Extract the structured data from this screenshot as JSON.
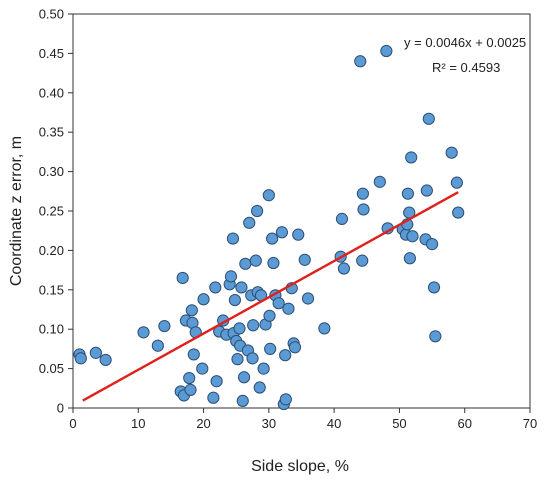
{
  "chart_data": {
    "type": "scatter",
    "xlabel": "Side slope, %",
    "ylabel": "Coordinate z error, m",
    "xlim": [
      0,
      70
    ],
    "ylim": [
      0,
      0.5
    ],
    "xticks": [
      "0",
      "10",
      "20",
      "30",
      "40",
      "50",
      "60",
      "70"
    ],
    "yticks": [
      "0",
      "0.05",
      "0.10",
      "0.15",
      "0.20",
      "0.25",
      "0.30",
      "0.35",
      "0.40",
      "0.45",
      "0.50"
    ],
    "grid": false,
    "legend": "none",
    "point_color": "#5B9BD5",
    "point_edge": "#2E4E73",
    "trend_color": "#E0201B",
    "annotations": [
      "y = 0.0046x + 0.0025",
      "R² = 0.4593"
    ],
    "trendline": {
      "slope": 0.0046,
      "intercept": 0.0025,
      "x": [
        1.5,
        59
      ]
    },
    "points": [
      [
        1,
        0.068
      ],
      [
        1.2,
        0.063
      ],
      [
        3.5,
        0.07
      ],
      [
        5,
        0.061
      ],
      [
        10.8,
        0.096
      ],
      [
        13,
        0.079
      ],
      [
        14,
        0.104
      ],
      [
        16.5,
        0.021
      ],
      [
        16.8,
        0.165
      ],
      [
        17,
        0.016
      ],
      [
        17.3,
        0.111
      ],
      [
        17.8,
        0.038
      ],
      [
        18,
        0.023
      ],
      [
        18.2,
        0.124
      ],
      [
        18.3,
        0.108
      ],
      [
        18.5,
        0.068
      ],
      [
        18.8,
        0.096
      ],
      [
        19.8,
        0.05
      ],
      [
        20,
        0.138
      ],
      [
        21.5,
        0.013
      ],
      [
        21.8,
        0.153
      ],
      [
        22,
        0.034
      ],
      [
        22.4,
        0.097
      ],
      [
        23,
        0.111
      ],
      [
        23.5,
        0.093
      ],
      [
        24,
        0.157
      ],
      [
        24.2,
        0.167
      ],
      [
        24.5,
        0.215
      ],
      [
        24.6,
        0.095
      ],
      [
        24.8,
        0.137
      ],
      [
        25,
        0.085
      ],
      [
        25.2,
        0.062
      ],
      [
        25.5,
        0.101
      ],
      [
        25.6,
        0.079
      ],
      [
        25.8,
        0.153
      ],
      [
        26,
        0.009
      ],
      [
        26.2,
        0.039
      ],
      [
        26.4,
        0.183
      ],
      [
        26.8,
        0.073
      ],
      [
        27,
        0.235
      ],
      [
        27.3,
        0.143
      ],
      [
        27.5,
        0.063
      ],
      [
        27.6,
        0.105
      ],
      [
        28,
        0.187
      ],
      [
        28.2,
        0.25
      ],
      [
        28.3,
        0.147
      ],
      [
        28.6,
        0.026
      ],
      [
        28.8,
        0.143
      ],
      [
        29.2,
        0.05
      ],
      [
        29.5,
        0.106
      ],
      [
        30,
        0.27
      ],
      [
        30.1,
        0.117
      ],
      [
        30.2,
        0.075
      ],
      [
        30.5,
        0.215
      ],
      [
        30.7,
        0.184
      ],
      [
        31,
        0.143
      ],
      [
        31.5,
        0.133
      ],
      [
        32,
        0.223
      ],
      [
        32.3,
        0.005
      ],
      [
        32.5,
        0.067
      ],
      [
        32.6,
        0.011
      ],
      [
        33,
        0.126
      ],
      [
        33.5,
        0.152
      ],
      [
        33.8,
        0.082
      ],
      [
        34,
        0.077
      ],
      [
        34.5,
        0.22
      ],
      [
        35.5,
        0.188
      ],
      [
        36,
        0.139
      ],
      [
        38.5,
        0.101
      ],
      [
        41,
        0.192
      ],
      [
        41.2,
        0.24
      ],
      [
        41.5,
        0.177
      ],
      [
        44,
        0.44
      ],
      [
        44.3,
        0.187
      ],
      [
        44.4,
        0.272
      ],
      [
        44.5,
        0.252
      ],
      [
        47,
        0.287
      ],
      [
        48,
        0.453
      ],
      [
        48.2,
        0.228
      ],
      [
        50.5,
        0.227
      ],
      [
        51,
        0.22
      ],
      [
        51.2,
        0.233
      ],
      [
        51.3,
        0.272
      ],
      [
        51.5,
        0.248
      ],
      [
        51.6,
        0.19
      ],
      [
        51.8,
        0.318
      ],
      [
        52,
        0.218
      ],
      [
        54,
        0.214
      ],
      [
        54.2,
        0.276
      ],
      [
        54.5,
        0.367
      ],
      [
        55,
        0.208
      ],
      [
        55.3,
        0.153
      ],
      [
        55.5,
        0.091
      ],
      [
        58,
        0.324
      ],
      [
        58.8,
        0.286
      ],
      [
        59,
        0.248
      ]
    ]
  }
}
